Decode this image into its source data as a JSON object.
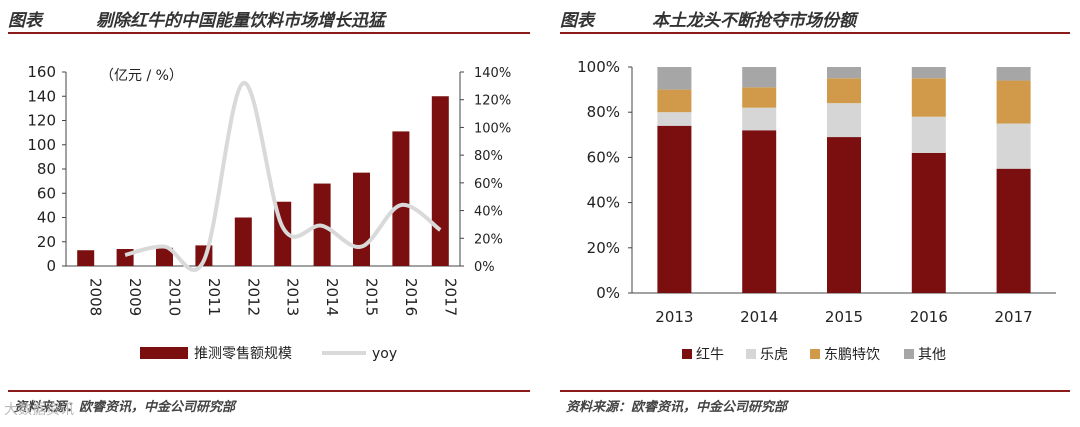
{
  "left": {
    "title_prefix": "图表",
    "title": "剔除红牛的中国能量饮料市场增长迅猛",
    "source": "资料来源：欧睿资讯，中金公司研究部",
    "watermark": "大数据资讯"
  },
  "right": {
    "title_prefix": "图表",
    "title": "本土龙头不断抢夺市场份额",
    "source": "资料来源：欧睿资讯，中金公司研究部"
  },
  "chart_data": [
    {
      "type": "bar",
      "unit_label": "（亿元 / %）",
      "categories": [
        "2008",
        "2009",
        "2010",
        "2011",
        "2012",
        "2013",
        "2014",
        "2015",
        "2016",
        "2017"
      ],
      "series": [
        {
          "name": "推测零售额规模",
          "type": "bar",
          "axis": "left",
          "color": "#7b0f0f",
          "values": [
            13,
            14,
            15,
            17,
            40,
            53,
            68,
            77,
            111,
            140
          ]
        },
        {
          "name": "yoy",
          "type": "line",
          "axis": "right",
          "color": "#d9d9d9",
          "values": [
            null,
            8,
            14,
            4,
            132,
            28,
            29,
            14,
            44,
            26
          ]
        }
      ],
      "left_axis": {
        "min": 0,
        "max": 160,
        "ticks": [
          0,
          20,
          40,
          60,
          80,
          100,
          120,
          140,
          160
        ]
      },
      "right_axis": {
        "min": 0,
        "max": 140,
        "ticks": [
          "0%",
          "20%",
          "40%",
          "60%",
          "80%",
          "100%",
          "120%",
          "140%"
        ]
      },
      "x_label_rotation": "vertical",
      "legend_position": "bottom"
    },
    {
      "type": "bar",
      "stacked": true,
      "categories": [
        "2013",
        "2014",
        "2015",
        "2016",
        "2017"
      ],
      "series": [
        {
          "name": "红牛",
          "color": "#7b0f0f",
          "values": [
            74,
            72,
            69,
            62,
            55
          ]
        },
        {
          "name": "乐虎",
          "color": "#d6d6d6",
          "values": [
            6,
            10,
            15,
            16,
            20
          ]
        },
        {
          "name": "东鹏特饮",
          "color": "#d09a4a",
          "values": [
            10,
            9,
            11,
            17,
            19
          ]
        },
        {
          "name": "其他",
          "color": "#a6a6a6",
          "values": [
            10,
            9,
            5,
            5,
            6
          ]
        }
      ],
      "y_axis": {
        "min": 0,
        "max": 100,
        "ticks": [
          "0%",
          "20%",
          "40%",
          "60%",
          "80%",
          "100%"
        ]
      },
      "legend_position": "bottom"
    }
  ]
}
